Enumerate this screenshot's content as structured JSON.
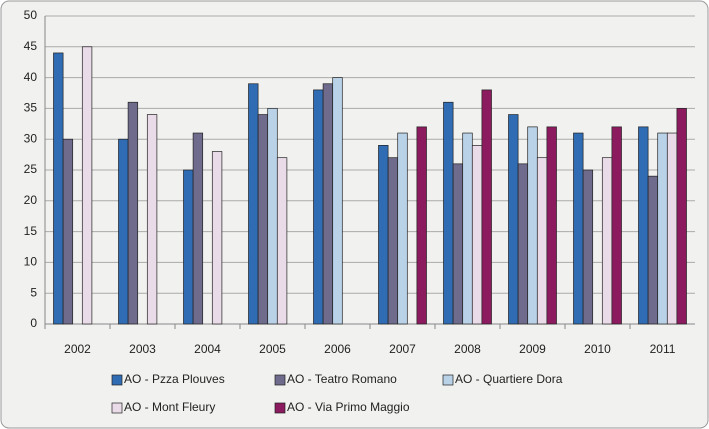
{
  "chart_data": {
    "type": "bar",
    "categories": [
      "2002",
      "2003",
      "2004",
      "2005",
      "2006",
      "2007",
      "2008",
      "2009",
      "2010",
      "2011"
    ],
    "series": [
      {
        "name": "AO - Pzza Plouves",
        "color": "#2f6cb3",
        "values": [
          44,
          30,
          25,
          39,
          38,
          29,
          36,
          34,
          31,
          32
        ]
      },
      {
        "name": "AO - Teatro Romano",
        "color": "#6e6b8c",
        "values": [
          30,
          36,
          31,
          34,
          39,
          27,
          26,
          26,
          25,
          24
        ]
      },
      {
        "name": "AO - Quartiere Dora",
        "color": "#b9d2e8",
        "values": [
          null,
          null,
          null,
          35,
          40,
          31,
          31,
          32,
          null,
          31
        ]
      },
      {
        "name": "AO - Mont Fleury",
        "color": "#eadbe9",
        "values": [
          45,
          34,
          28,
          27,
          null,
          null,
          29,
          27,
          27,
          31
        ]
      },
      {
        "name": "AO - Via Primo Maggio",
        "color": "#8c1a5e",
        "values": [
          null,
          null,
          null,
          null,
          null,
          32,
          38,
          32,
          32,
          35
        ]
      }
    ],
    "ylim": [
      0,
      50
    ],
    "yticks": [
      0,
      5,
      10,
      15,
      20,
      25,
      30,
      35,
      40,
      45,
      50
    ],
    "grid": true
  }
}
